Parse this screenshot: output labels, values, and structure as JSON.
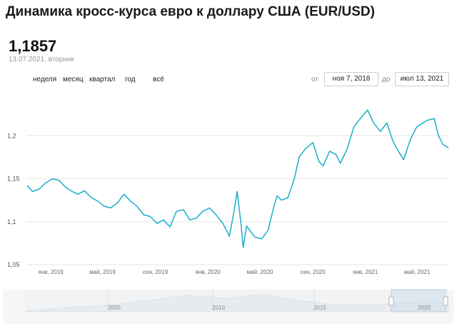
{
  "header": {
    "title": "Динамика кросс-курса евро к доллару США (EUR/USD)"
  },
  "current": {
    "value": "1,1857",
    "date": "13.07.2021, вторник"
  },
  "periods": [
    "неделя",
    "месяц",
    "квартал",
    "год",
    "всё"
  ],
  "range": {
    "from_label": "от",
    "from_value": "ноя 7, 2018",
    "to_label": "до",
    "to_value": "июл 13, 2021"
  },
  "navigator": {
    "labels": [
      "2005",
      "2010",
      "2015",
      "2020"
    ]
  },
  "colors": {
    "line": "#1aaccd",
    "grid": "#e6e6e6",
    "navigator_fill": "#e8ebee"
  },
  "chart_data": {
    "type": "line",
    "title": "",
    "xlabel": "",
    "ylabel": "",
    "ylim": [
      1.05,
      1.25
    ],
    "xlim": [
      "2018-11-07",
      "2021-07-13"
    ],
    "yticks": [
      "1,05",
      "1,1",
      "1,15",
      "1,2"
    ],
    "xticks": [
      {
        "date": "2019-01-01",
        "label": "янв, 2019"
      },
      {
        "date": "2019-05-01",
        "label": "май, 2019"
      },
      {
        "date": "2019-09-01",
        "label": "сен, 2019"
      },
      {
        "date": "2020-01-01",
        "label": "янв, 2020"
      },
      {
        "date": "2020-05-01",
        "label": "май, 2020"
      },
      {
        "date": "2020-09-01",
        "label": "сен, 2020"
      },
      {
        "date": "2021-01-01",
        "label": "янв, 2021"
      },
      {
        "date": "2021-05-01",
        "label": "май, 2021"
      }
    ],
    "grid": true,
    "legend": "none",
    "series": [
      {
        "x": [
          "2018-11-07",
          "2018-11-20",
          "2018-12-05",
          "2018-12-20",
          "2019-01-05",
          "2019-01-20",
          "2019-02-05",
          "2019-02-20",
          "2019-03-05",
          "2019-03-20",
          "2019-04-05",
          "2019-04-20",
          "2019-05-05",
          "2019-05-20",
          "2019-06-05",
          "2019-06-20",
          "2019-07-05",
          "2019-07-20",
          "2019-08-05",
          "2019-08-20",
          "2019-09-05",
          "2019-09-20",
          "2019-10-05",
          "2019-10-20",
          "2019-11-05",
          "2019-11-20",
          "2019-12-05",
          "2019-12-20",
          "2020-01-05",
          "2020-01-20",
          "2020-02-05",
          "2020-02-20",
          "2020-03-01",
          "2020-03-09",
          "2020-03-18",
          "2020-03-23",
          "2020-03-31",
          "2020-04-10",
          "2020-04-20",
          "2020-05-05",
          "2020-05-20",
          "2020-06-01",
          "2020-06-10",
          "2020-06-20",
          "2020-07-05",
          "2020-07-20",
          "2020-07-31",
          "2020-08-15",
          "2020-09-01",
          "2020-09-15",
          "2020-09-25",
          "2020-10-10",
          "2020-10-25",
          "2020-11-04",
          "2020-11-20",
          "2020-12-05",
          "2020-12-20",
          "2021-01-06",
          "2021-01-20",
          "2021-02-05",
          "2021-02-20",
          "2021-03-05",
          "2021-03-15",
          "2021-03-31",
          "2021-04-15",
          "2021-04-30",
          "2021-05-15",
          "2021-05-25",
          "2021-06-10",
          "2021-06-20",
          "2021-06-30",
          "2021-07-13"
        ],
        "y": [
          1.142,
          1.135,
          1.138,
          1.145,
          1.15,
          1.148,
          1.14,
          1.135,
          1.132,
          1.136,
          1.128,
          1.124,
          1.118,
          1.116,
          1.122,
          1.132,
          1.124,
          1.118,
          1.108,
          1.106,
          1.098,
          1.102,
          1.094,
          1.112,
          1.114,
          1.102,
          1.104,
          1.112,
          1.116,
          1.108,
          1.098,
          1.083,
          1.11,
          1.135,
          1.098,
          1.07,
          1.095,
          1.088,
          1.082,
          1.08,
          1.09,
          1.115,
          1.13,
          1.125,
          1.128,
          1.15,
          1.175,
          1.185,
          1.192,
          1.17,
          1.165,
          1.182,
          1.178,
          1.168,
          1.185,
          1.21,
          1.22,
          1.23,
          1.215,
          1.205,
          1.215,
          1.195,
          1.185,
          1.172,
          1.195,
          1.21,
          1.215,
          1.218,
          1.22,
          1.2,
          1.19,
          1.1857
        ]
      }
    ]
  }
}
